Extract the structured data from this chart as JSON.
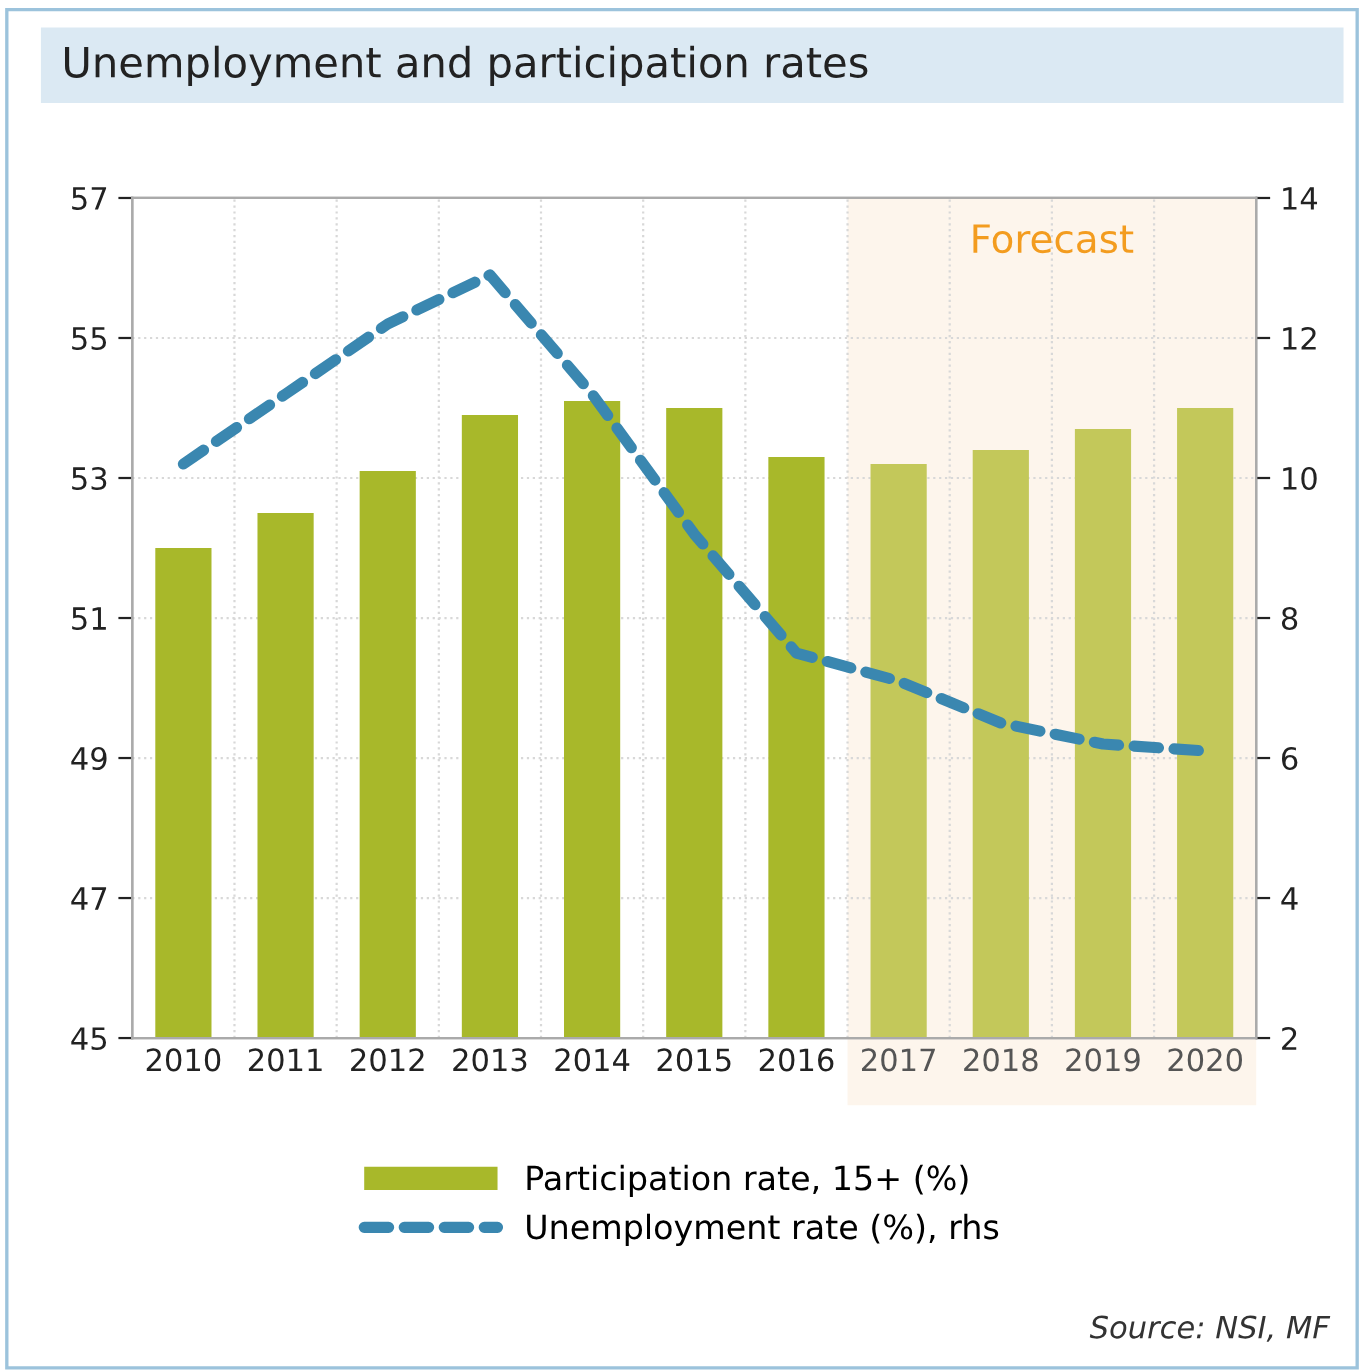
{
  "chart_data": {
    "type": "bar",
    "title": "Unemployment and participation rates",
    "categories": [
      "2010",
      "2011",
      "2012",
      "2013",
      "2014",
      "2015",
      "2016",
      "2017",
      "2018",
      "2019",
      "2020"
    ],
    "series": [
      {
        "name": "Participation rate, 15+ (%)",
        "type": "bar",
        "color": "#a8b82a",
        "colors": [
          "#a8b82a",
          "#a8b82a",
          "#a8b82a",
          "#a8b82a",
          "#a8b82a",
          "#a8b82a",
          "#a8b82a",
          "#c3c85a",
          "#c3c85a",
          "#c3c85a",
          "#c3c85a"
        ],
        "values": [
          52.0,
          52.5,
          53.1,
          53.9,
          54.1,
          54.0,
          53.3,
          53.2,
          53.4,
          53.7,
          54.0
        ]
      },
      {
        "name": "Unemployment rate (%), rhs",
        "type": "line",
        "axis": "y2",
        "color": "#3a87b0",
        "line_style": "dashed",
        "values": [
          10.2,
          11.2,
          12.2,
          12.9,
          11.2,
          9.2,
          7.5,
          7.1,
          6.5,
          6.2,
          6.1
        ]
      }
    ],
    "ylim": [
      45,
      57
    ],
    "yticks": [
      45,
      47,
      49,
      51,
      53,
      55,
      57
    ],
    "y2lim": [
      2,
      14
    ],
    "y2ticks": [
      2,
      4,
      6,
      8,
      10,
      12,
      14
    ],
    "bands": [
      {
        "axis": "x",
        "from": "2017",
        "to": "2020",
        "label": "Forecast",
        "color": "#fdf5ec"
      }
    ],
    "grid": true,
    "legend": "bottom",
    "annotations": [
      "Source: NSI, MF"
    ]
  }
}
